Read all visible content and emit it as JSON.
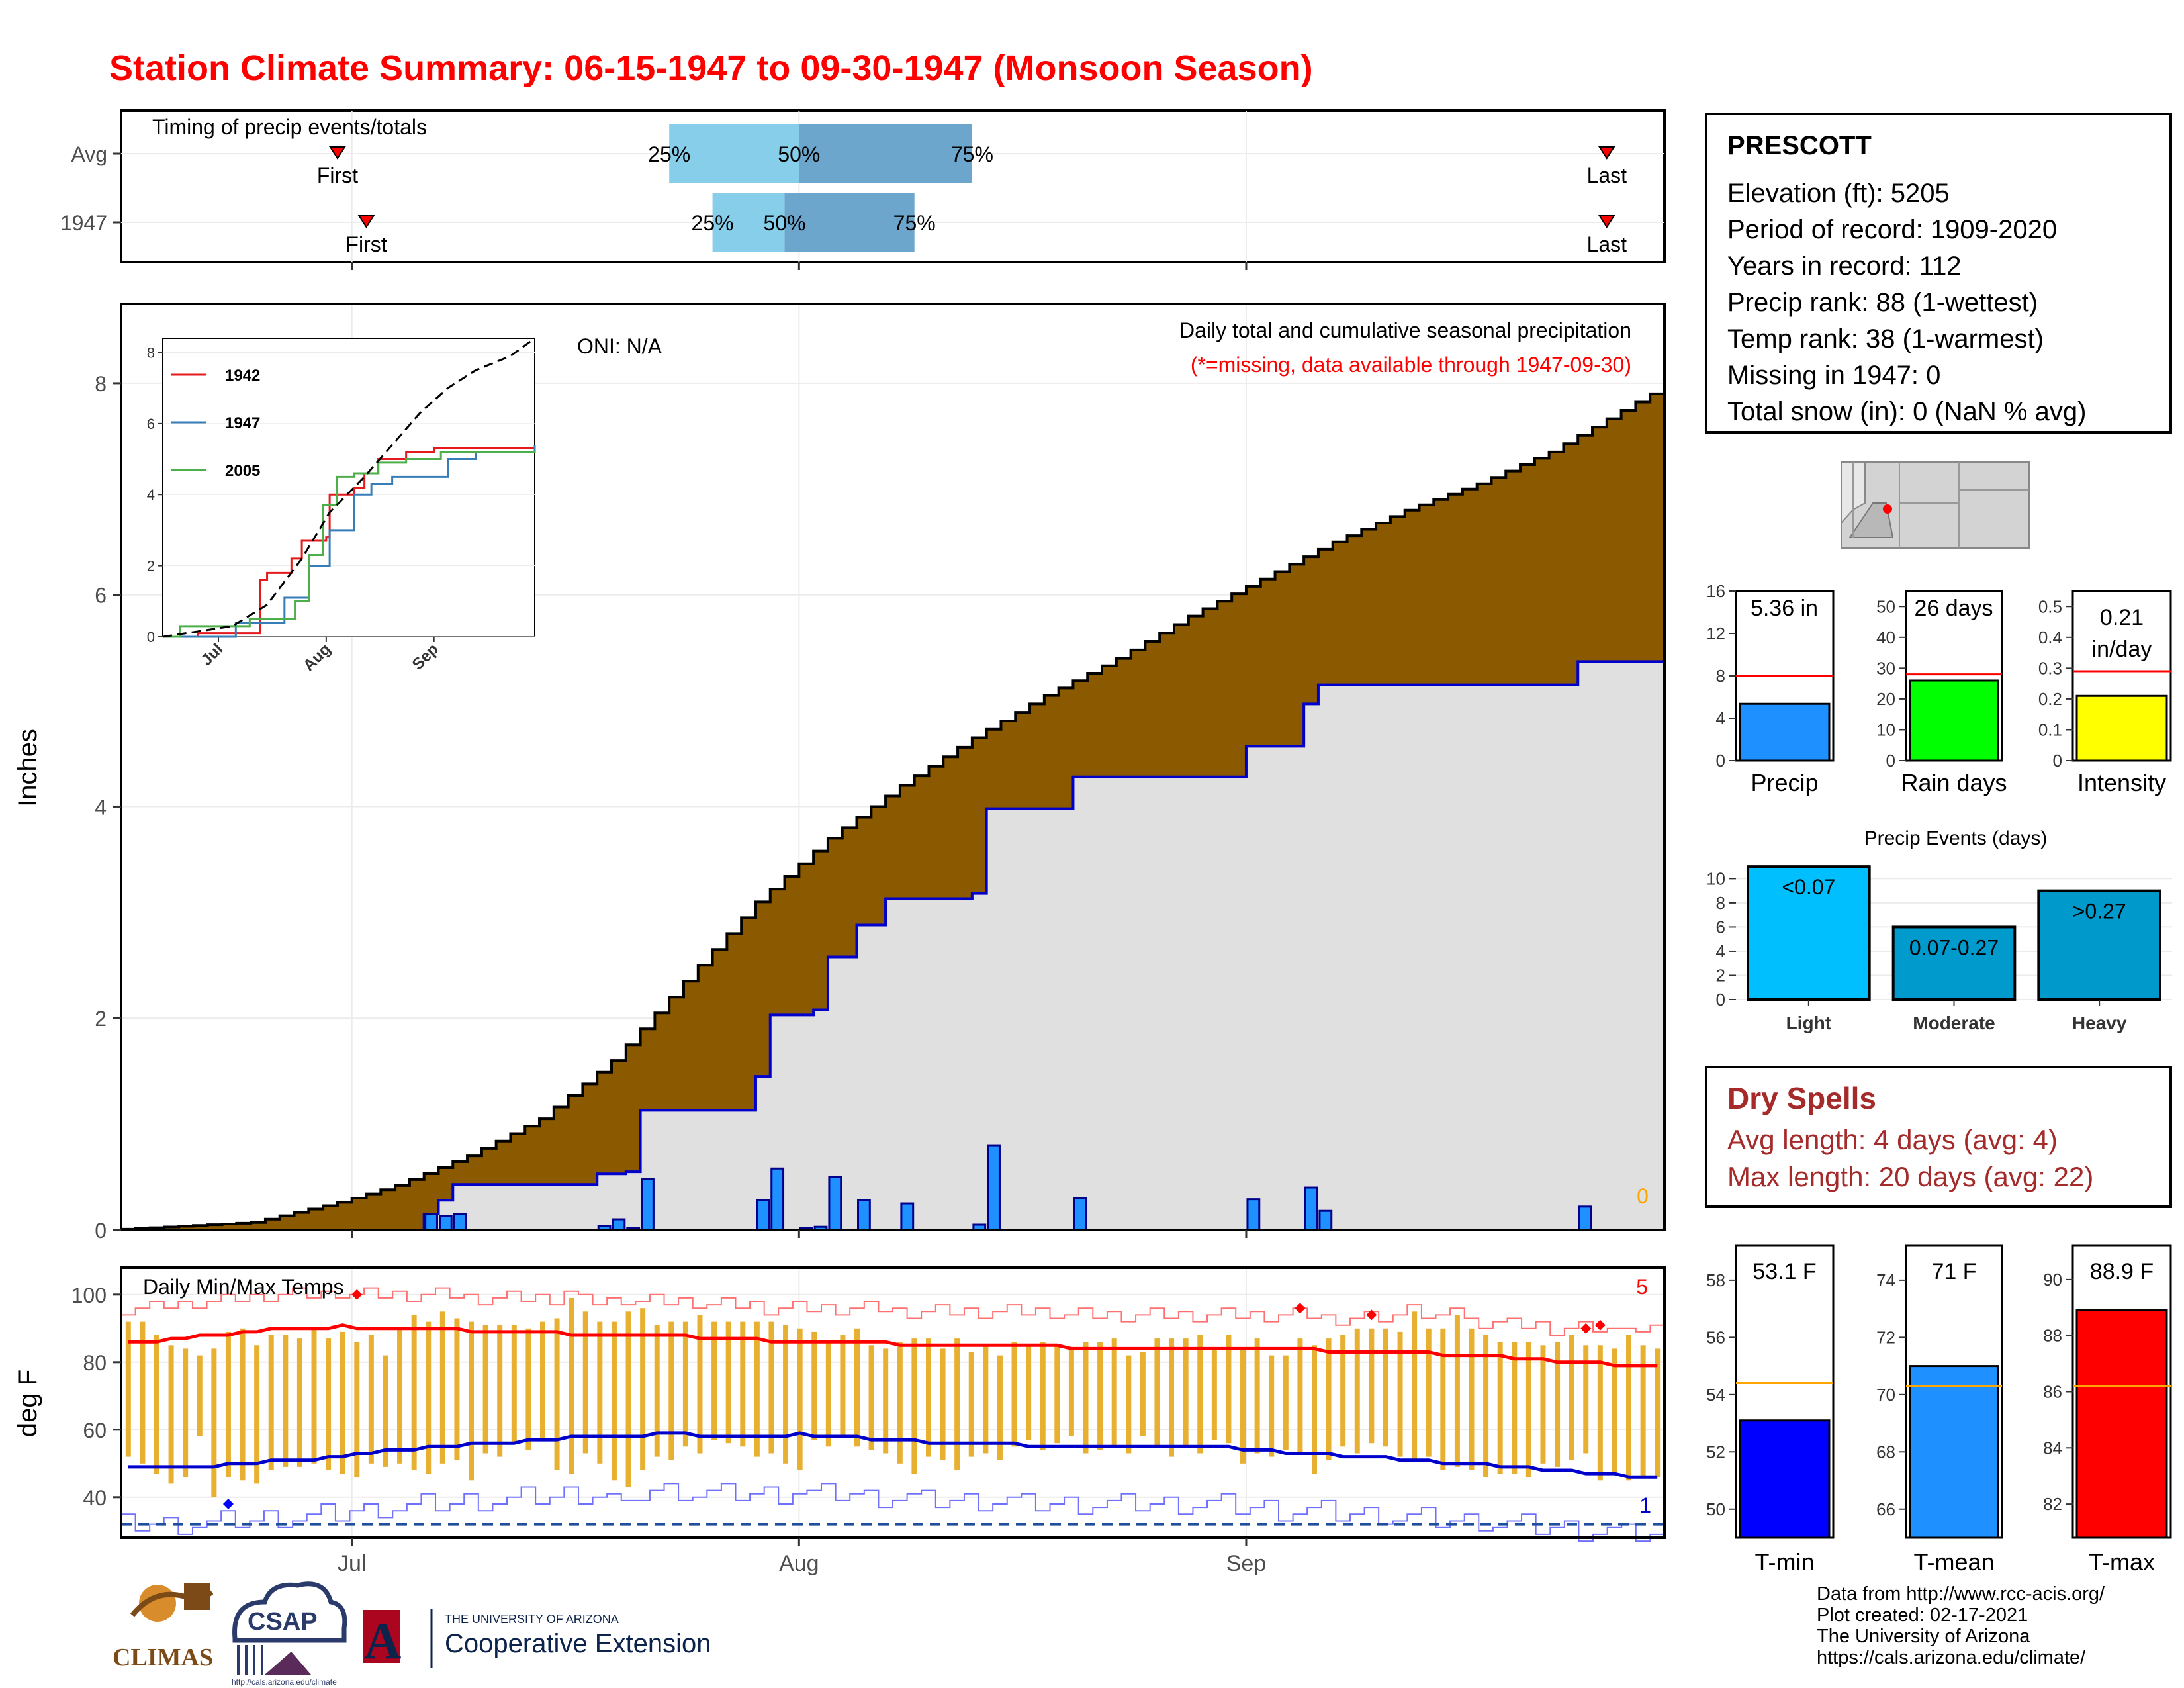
{
  "page": {
    "title": "Station Climate Summary: 06-15-1947 to 09-30-1947 (Monsoon Season)"
  },
  "station_info": {
    "name": "PRESCOTT",
    "lines": [
      "Elevation (ft): 5205",
      "Period of record: 1909-2020",
      "Years in record: 112",
      "Precip rank: 88 (1-wettest)",
      "Temp rank: 38 (1-warmest)",
      "Missing in 1947: 0",
      "Total snow (in): 0 (NaN % avg)"
    ]
  },
  "dry_spells": {
    "title": "Dry Spells",
    "avg_length": "Avg length: 4 days (avg: 4)",
    "max_length": "Max length: 20 days (avg: 22)"
  },
  "credits": {
    "lines": [
      "Data from http://www.rcc-acis.org/",
      "Plot created: 02-17-2021",
      "The University of Arizona",
      "https://cals.arizona.edu/climate/"
    ]
  },
  "logos": {
    "climas": "CLIMAS",
    "csap": "CSAP",
    "csap_url": "http://cals.arizona.edu/climate",
    "ua_top": "THE UNIVERSITY OF ARIZONA",
    "ua_bottom": "Cooperative Extension"
  },
  "colors": {
    "title": "#ff0000",
    "cumulative_avg_fill": "#8b5a00",
    "cumulative_obs_fill": "#e0e0e0",
    "obs_line": "#0000cd",
    "daily_bar": "#1e90ff",
    "temp_bar": "#e8b030",
    "tmax_line": "#ff0000",
    "tmin_line": "#0000cd",
    "dry_spell_text": "#a52a2a"
  },
  "chart_data": [
    {
      "id": "timing",
      "type": "bar",
      "title": "Timing of precip events/totals",
      "xlim": [
        "06-15",
        "09-30"
      ],
      "rows": [
        {
          "label": "Avg",
          "first": "06-30",
          "p25": "07-23",
          "p50": "08-01",
          "p75": "08-13",
          "last": "09-26"
        },
        {
          "label": "1947",
          "first": "07-02",
          "p25": "07-26",
          "p50": "07-31",
          "p75": "08-09",
          "last": "09-26"
        }
      ],
      "marker_labels": {
        "first": "First",
        "last": "Last",
        "p25": "25%",
        "p50": "50%",
        "p75": "75%"
      }
    },
    {
      "id": "precip",
      "type": "area",
      "title": "Daily total and cumulative seasonal precipitation",
      "subtitle": "(*=missing, data available through 1947-09-30)",
      "annotation": "ONI: N/A",
      "missing_count": "0",
      "ylabel": "Inches",
      "ylim": [
        0,
        8.75
      ],
      "yticks": [
        0,
        2,
        4,
        6,
        8
      ],
      "xticks": [
        "Jul",
        "Aug",
        "Sep"
      ],
      "x_start": "06-15",
      "x_end": "09-30",
      "cumulative_avg": [
        {
          "x": "06-15",
          "y": 0.0
        },
        {
          "x": "06-25",
          "y": 0.07
        },
        {
          "x": "07-01",
          "y": 0.26
        },
        {
          "x": "07-05",
          "y": 0.42
        },
        {
          "x": "07-10",
          "y": 0.7
        },
        {
          "x": "07-15",
          "y": 1.05
        },
        {
          "x": "07-20",
          "y": 1.6
        },
        {
          "x": "07-25",
          "y": 2.35
        },
        {
          "x": "07-30",
          "y": 3.1
        },
        {
          "x": "08-04",
          "y": 3.7
        },
        {
          "x": "08-09",
          "y": 4.2
        },
        {
          "x": "08-14",
          "y": 4.65
        },
        {
          "x": "08-19",
          "y": 5.05
        },
        {
          "x": "08-24",
          "y": 5.4
        },
        {
          "x": "08-29",
          "y": 5.8
        },
        {
          "x": "09-03",
          "y": 6.15
        },
        {
          "x": "09-08",
          "y": 6.5
        },
        {
          "x": "09-13",
          "y": 6.8
        },
        {
          "x": "09-18",
          "y": 7.05
        },
        {
          "x": "09-23",
          "y": 7.35
        },
        {
          "x": "09-30",
          "y": 7.9
        }
      ],
      "cumulative_obs": [
        {
          "x": "06-15",
          "y": 0.0
        },
        {
          "x": "07-05",
          "y": 0.0
        },
        {
          "x": "07-06",
          "y": 0.15
        },
        {
          "x": "07-07",
          "y": 0.28
        },
        {
          "x": "07-08",
          "y": 0.43
        },
        {
          "x": "07-17",
          "y": 0.43
        },
        {
          "x": "07-18",
          "y": 0.53
        },
        {
          "x": "07-20",
          "y": 0.55
        },
        {
          "x": "07-21",
          "y": 1.13
        },
        {
          "x": "07-28",
          "y": 1.13
        },
        {
          "x": "07-29",
          "y": 1.45
        },
        {
          "x": "07-30",
          "y": 2.03
        },
        {
          "x": "08-02",
          "y": 2.08
        },
        {
          "x": "08-03",
          "y": 2.58
        },
        {
          "x": "08-05",
          "y": 2.88
        },
        {
          "x": "08-07",
          "y": 3.13
        },
        {
          "x": "08-13",
          "y": 3.18
        },
        {
          "x": "08-14",
          "y": 3.98
        },
        {
          "x": "08-20",
          "y": 4.28
        },
        {
          "x": "09-01",
          "y": 4.57
        },
        {
          "x": "09-05",
          "y": 4.97
        },
        {
          "x": "09-06",
          "y": 5.15
        },
        {
          "x": "09-24",
          "y": 5.37
        },
        {
          "x": "09-30",
          "y": 5.37
        }
      ],
      "daily": [
        {
          "x": "07-06",
          "y": 0.15
        },
        {
          "x": "07-07",
          "y": 0.13
        },
        {
          "x": "07-08",
          "y": 0.15
        },
        {
          "x": "07-18",
          "y": 0.04
        },
        {
          "x": "07-19",
          "y": 0.1
        },
        {
          "x": "07-20",
          "y": 0.02
        },
        {
          "x": "07-21",
          "y": 0.48
        },
        {
          "x": "07-29",
          "y": 0.28
        },
        {
          "x": "07-30",
          "y": 0.58
        },
        {
          "x": "08-01",
          "y": 0.02
        },
        {
          "x": "08-02",
          "y": 0.03
        },
        {
          "x": "08-03",
          "y": 0.5
        },
        {
          "x": "08-05",
          "y": 0.28
        },
        {
          "x": "08-08",
          "y": 0.25
        },
        {
          "x": "08-13",
          "y": 0.05
        },
        {
          "x": "08-14",
          "y": 0.8
        },
        {
          "x": "08-20",
          "y": 0.3
        },
        {
          "x": "09-01",
          "y": 0.29
        },
        {
          "x": "09-05",
          "y": 0.4
        },
        {
          "x": "09-06",
          "y": 0.18
        },
        {
          "x": "09-24",
          "y": 0.22
        }
      ]
    },
    {
      "id": "inset",
      "type": "line",
      "xticks": [
        "Jul",
        "Aug",
        "Sep"
      ],
      "yticks": [
        0,
        2,
        4,
        6,
        8
      ],
      "ylim": [
        0,
        8.4
      ],
      "series": [
        {
          "name": "1942",
          "color": "#e41a1c",
          "values": [
            [
              0,
              0
            ],
            [
              10,
              0.1
            ],
            [
              25,
              0.1
            ],
            [
              28,
              1.6
            ],
            [
              30,
              1.8
            ],
            [
              37,
              2.2
            ],
            [
              40,
              2.7
            ],
            [
              47,
              2.8
            ],
            [
              48,
              4.0
            ],
            [
              55,
              4.2
            ],
            [
              58,
              4.6
            ],
            [
              62,
              5.0
            ],
            [
              70,
              5.2
            ],
            [
              78,
              5.3
            ],
            [
              107,
              5.3
            ]
          ]
        },
        {
          "name": "1947",
          "color": "#377eb8",
          "values": [
            [
              0,
              0
            ],
            [
              21,
              0.4
            ],
            [
              35,
              1.1
            ],
            [
              42,
              2.0
            ],
            [
              48,
              3.0
            ],
            [
              55,
              4.0
            ],
            [
              60,
              4.3
            ],
            [
              66,
              4.5
            ],
            [
              82,
              5.0
            ],
            [
              90,
              5.2
            ],
            [
              107,
              5.4
            ]
          ]
        },
        {
          "name": "2005",
          "color": "#4daf4a",
          "values": [
            [
              0,
              0
            ],
            [
              5,
              0.3
            ],
            [
              20,
              0.3
            ],
            [
              25,
              0.5
            ],
            [
              38,
              1.0
            ],
            [
              42,
              2.3
            ],
            [
              46,
              3.7
            ],
            [
              50,
              4.5
            ],
            [
              55,
              4.6
            ],
            [
              62,
              4.9
            ],
            [
              70,
              5.0
            ],
            [
              80,
              5.2
            ],
            [
              107,
              5.2
            ]
          ]
        }
      ],
      "avg_series": [
        [
          0,
          0
        ],
        [
          20,
          0.3
        ],
        [
          30,
          0.9
        ],
        [
          40,
          2.2
        ],
        [
          48,
          3.5
        ],
        [
          58,
          4.5
        ],
        [
          66,
          5.4
        ],
        [
          74,
          6.3
        ],
        [
          82,
          7.0
        ],
        [
          90,
          7.5
        ],
        [
          100,
          7.9
        ],
        [
          107,
          8.4
        ]
      ]
    },
    {
      "id": "temps",
      "type": "bar",
      "title": "Daily Min/Max Temps",
      "ylabel": "deg F",
      "ylim": [
        28,
        108
      ],
      "yticks": [
        40,
        60,
        80,
        100
      ],
      "xticks": [
        "Jul",
        "Aug",
        "Sep"
      ],
      "records_high_count": "5",
      "records_low_count": "1",
      "daily_min": [
        52,
        50,
        47,
        44,
        46,
        58,
        40,
        46,
        45,
        44,
        48,
        49,
        49,
        50,
        48,
        47,
        46,
        50,
        49,
        50,
        48,
        47,
        50,
        51,
        45,
        53,
        52,
        56,
        54,
        57,
        48,
        47,
        53,
        50,
        45,
        43,
        48,
        52,
        51,
        55,
        53,
        57,
        56,
        55,
        52,
        53,
        50,
        48,
        57,
        55,
        58,
        55,
        54,
        53,
        50,
        47,
        52,
        51,
        48,
        52,
        53,
        51,
        55,
        57,
        54,
        56,
        58,
        53,
        54,
        55,
        53,
        58,
        55,
        52,
        55,
        53,
        57,
        56,
        50,
        53,
        52,
        54,
        53,
        47,
        51,
        55,
        53,
        56,
        55,
        52,
        51,
        52,
        48,
        49,
        48,
        46,
        47,
        47,
        46,
        50,
        49,
        51,
        53,
        45,
        47,
        45,
        46,
        46
      ],
      "daily_max": [
        92,
        92,
        88,
        85,
        84,
        82,
        84,
        89,
        90,
        85,
        88,
        88,
        87,
        90,
        87,
        89,
        86,
        88,
        82,
        90,
        94,
        92,
        95,
        93,
        92,
        91,
        91,
        91,
        90,
        92,
        93,
        99,
        95,
        92,
        92,
        95,
        96,
        91,
        92,
        92,
        94,
        92,
        92,
        92,
        92,
        92,
        91,
        90,
        89,
        86,
        88,
        90,
        85,
        84,
        86,
        87,
        87,
        84,
        87,
        83,
        85,
        82,
        86,
        85,
        86,
        85,
        84,
        86,
        86,
        87,
        82,
        83,
        87,
        87,
        87,
        88,
        84,
        88,
        84,
        87,
        82,
        82,
        87,
        85,
        87,
        88,
        90,
        90,
        90,
        89,
        95,
        90,
        90,
        94,
        90,
        88,
        86,
        86,
        86,
        85,
        86,
        88,
        85,
        85,
        84,
        88,
        85,
        84
      ],
      "avg_max": [
        86,
        86,
        86,
        87,
        87,
        88,
        88,
        88,
        89,
        89,
        90,
        90,
        90,
        90,
        90,
        91,
        90,
        90,
        90,
        90,
        90,
        90,
        90,
        90,
        89,
        89,
        89,
        89,
        89,
        89,
        89,
        88,
        88,
        88,
        88,
        88,
        88,
        88,
        88,
        88,
        87,
        87,
        87,
        87,
        87,
        86,
        86,
        86,
        86,
        86,
        86,
        86,
        86,
        86,
        85,
        85,
        85,
        85,
        85,
        85,
        85,
        85,
        85,
        85,
        85,
        85,
        84,
        84,
        84,
        84,
        84,
        84,
        84,
        84,
        84,
        84,
        84,
        84,
        84,
        84,
        84,
        84,
        84,
        84,
        83,
        83,
        83,
        83,
        83,
        83,
        83,
        83,
        82,
        82,
        82,
        82,
        82,
        81,
        81,
        81,
        80,
        80,
        80,
        80,
        79,
        79,
        79,
        79
      ],
      "avg_min": [
        49,
        49,
        49,
        49,
        49,
        49,
        49,
        50,
        50,
        50,
        51,
        51,
        51,
        51,
        52,
        52,
        53,
        53,
        54,
        54,
        54,
        55,
        55,
        55,
        56,
        56,
        56,
        56,
        57,
        57,
        57,
        58,
        58,
        58,
        58,
        58,
        58,
        59,
        59,
        59,
        58,
        58,
        58,
        58,
        58,
        58,
        58,
        59,
        58,
        58,
        58,
        58,
        57,
        57,
        57,
        57,
        56,
        56,
        56,
        56,
        56,
        56,
        56,
        55,
        55,
        55,
        55,
        55,
        55,
        55,
        55,
        55,
        55,
        55,
        55,
        55,
        55,
        55,
        54,
        54,
        54,
        53,
        53,
        53,
        53,
        52,
        52,
        52,
        52,
        51,
        51,
        51,
        50,
        50,
        50,
        50,
        49,
        49,
        49,
        48,
        48,
        48,
        47,
        47,
        47,
        46,
        46,
        46
      ],
      "record_high_days": [
        {
          "x": "07-01",
          "y": 100
        },
        {
          "x": "09-05",
          "y": 96
        },
        {
          "x": "09-10",
          "y": 94
        },
        {
          "x": "09-25",
          "y": 90
        },
        {
          "x": "09-26",
          "y": 91
        }
      ],
      "record_low_days": [
        {
          "x": "06-22",
          "y": 38
        }
      ],
      "freeze_line": 32
    },
    {
      "id": "precip_bars",
      "type": "bar",
      "categories": [
        "Precip",
        "Rain days",
        "Intensity"
      ],
      "values": [
        5.36,
        26,
        0.21
      ],
      "avg": [
        8.0,
        28,
        0.29
      ],
      "labels": [
        "5.36 in",
        "26 days",
        "0.21 in/day"
      ],
      "ylims": [
        [
          0,
          16
        ],
        [
          0,
          55
        ],
        [
          0,
          0.55
        ]
      ],
      "yticks": [
        [
          0,
          4,
          8,
          12,
          16
        ],
        [
          0,
          10,
          20,
          30,
          40,
          50
        ],
        [
          0.0,
          0.1,
          0.2,
          0.3,
          0.4,
          0.5
        ]
      ],
      "colors": [
        "#1e90ff",
        "#00ff00",
        "#ffff00"
      ]
    },
    {
      "id": "events",
      "type": "bar",
      "title": "Precip Events (days)",
      "categories": [
        "Light",
        "Moderate",
        "Heavy"
      ],
      "bar_labels": [
        "<0.07",
        "0.07-0.27",
        ">0.27"
      ],
      "values": [
        11,
        6,
        9
      ],
      "ylim": [
        0,
        11.5
      ],
      "yticks": [
        0,
        2,
        4,
        6,
        8,
        10
      ],
      "colors": [
        "#00bfff",
        "#009acd",
        "#0099cc"
      ]
    },
    {
      "id": "temp_bars",
      "type": "bar",
      "categories": [
        "T-min",
        "T-mean",
        "T-max"
      ],
      "values": [
        53.1,
        71,
        88.9
      ],
      "labels": [
        "53.1 F",
        "71 F",
        "88.9 F"
      ],
      "avg": [
        54.4,
        70.3,
        86.2
      ],
      "ylims": [
        [
          49,
          59.2
        ],
        [
          65,
          75.2
        ],
        [
          80.8,
          91.2
        ]
      ],
      "yticks": [
        [
          50,
          52,
          54,
          56,
          58
        ],
        [
          66,
          68,
          70,
          72,
          74
        ],
        [
          82,
          84,
          86,
          88,
          90
        ]
      ],
      "colors": [
        "#0000ff",
        "#1e90ff",
        "#ff0000"
      ]
    }
  ]
}
